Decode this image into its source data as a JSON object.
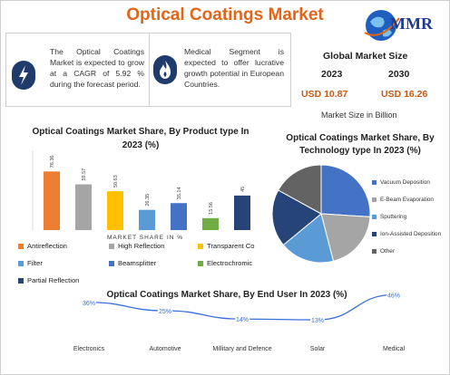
{
  "header": {
    "title": "Optical Coatings Market",
    "logo_text": "MMR"
  },
  "highlights": [
    {
      "text": "The Optical Coatings Market is expected to grow at a CAGR of 5.92 % during the forecast period."
    },
    {
      "text": "Medical Segment is expected to offer lucrative growth potential in European Countries."
    }
  ],
  "global_market": {
    "title": "Global Market Size",
    "years": [
      "2023",
      "2030"
    ],
    "values": [
      "USD 10.87",
      "USD 16.26"
    ],
    "unit_label": "Market Size in Billion"
  },
  "colors": {
    "title": "#e2661a",
    "navy": "#1f3a6b",
    "value": "#c65a15",
    "line": "#3a6fd8"
  },
  "chart_data": [
    {
      "type": "bar",
      "title": "Optical Coatings Market Share, By Product type In 2023 (%)",
      "xlabel": "MARKET SHARE IN %",
      "categories": [
        "Antireflection",
        "High Reflection",
        "Transparent Co",
        "Filter",
        "Beamsplitter",
        "Electrochromic",
        "Partial Reflection"
      ],
      "values": [
        76.36,
        59.57,
        50.63,
        26.35,
        35.14,
        15.56,
        45
      ],
      "value_labels": [
        "76.36",
        "59.57",
        "50.63",
        "26.35",
        "35.14",
        "15.56",
        "45"
      ],
      "colors": [
        "#ed7d31",
        "#a5a5a5",
        "#ffc000",
        "#5b9bd5",
        "#4472c4",
        "#70ad47",
        "#264478"
      ],
      "ylim": [
        0,
        85
      ]
    },
    {
      "type": "pie",
      "title": "Optical Coatings Market Share, By Technology type In 2023 (%)",
      "labels": [
        "Vacuum Deposition",
        "E-Beam Evaporation",
        "Sputtering",
        "Ion-Assisted Deposition",
        "Other"
      ],
      "values": [
        26,
        20,
        18,
        19,
        17
      ],
      "colors": [
        "#4472c4",
        "#a5a5a5",
        "#5b9bd5",
        "#264478",
        "#636363"
      ]
    },
    {
      "type": "line",
      "title": "Optical Coatings Market Share, By End User In 2023 (%)",
      "categories": [
        "Electronics",
        "Automotive",
        "Millitary and Defence",
        "Solar",
        "Medical"
      ],
      "values": [
        36,
        25,
        14,
        13,
        46
      ],
      "value_labels": [
        "36%",
        "25%",
        "14%",
        "13%",
        "46%"
      ],
      "ylim": [
        0,
        50
      ]
    }
  ]
}
